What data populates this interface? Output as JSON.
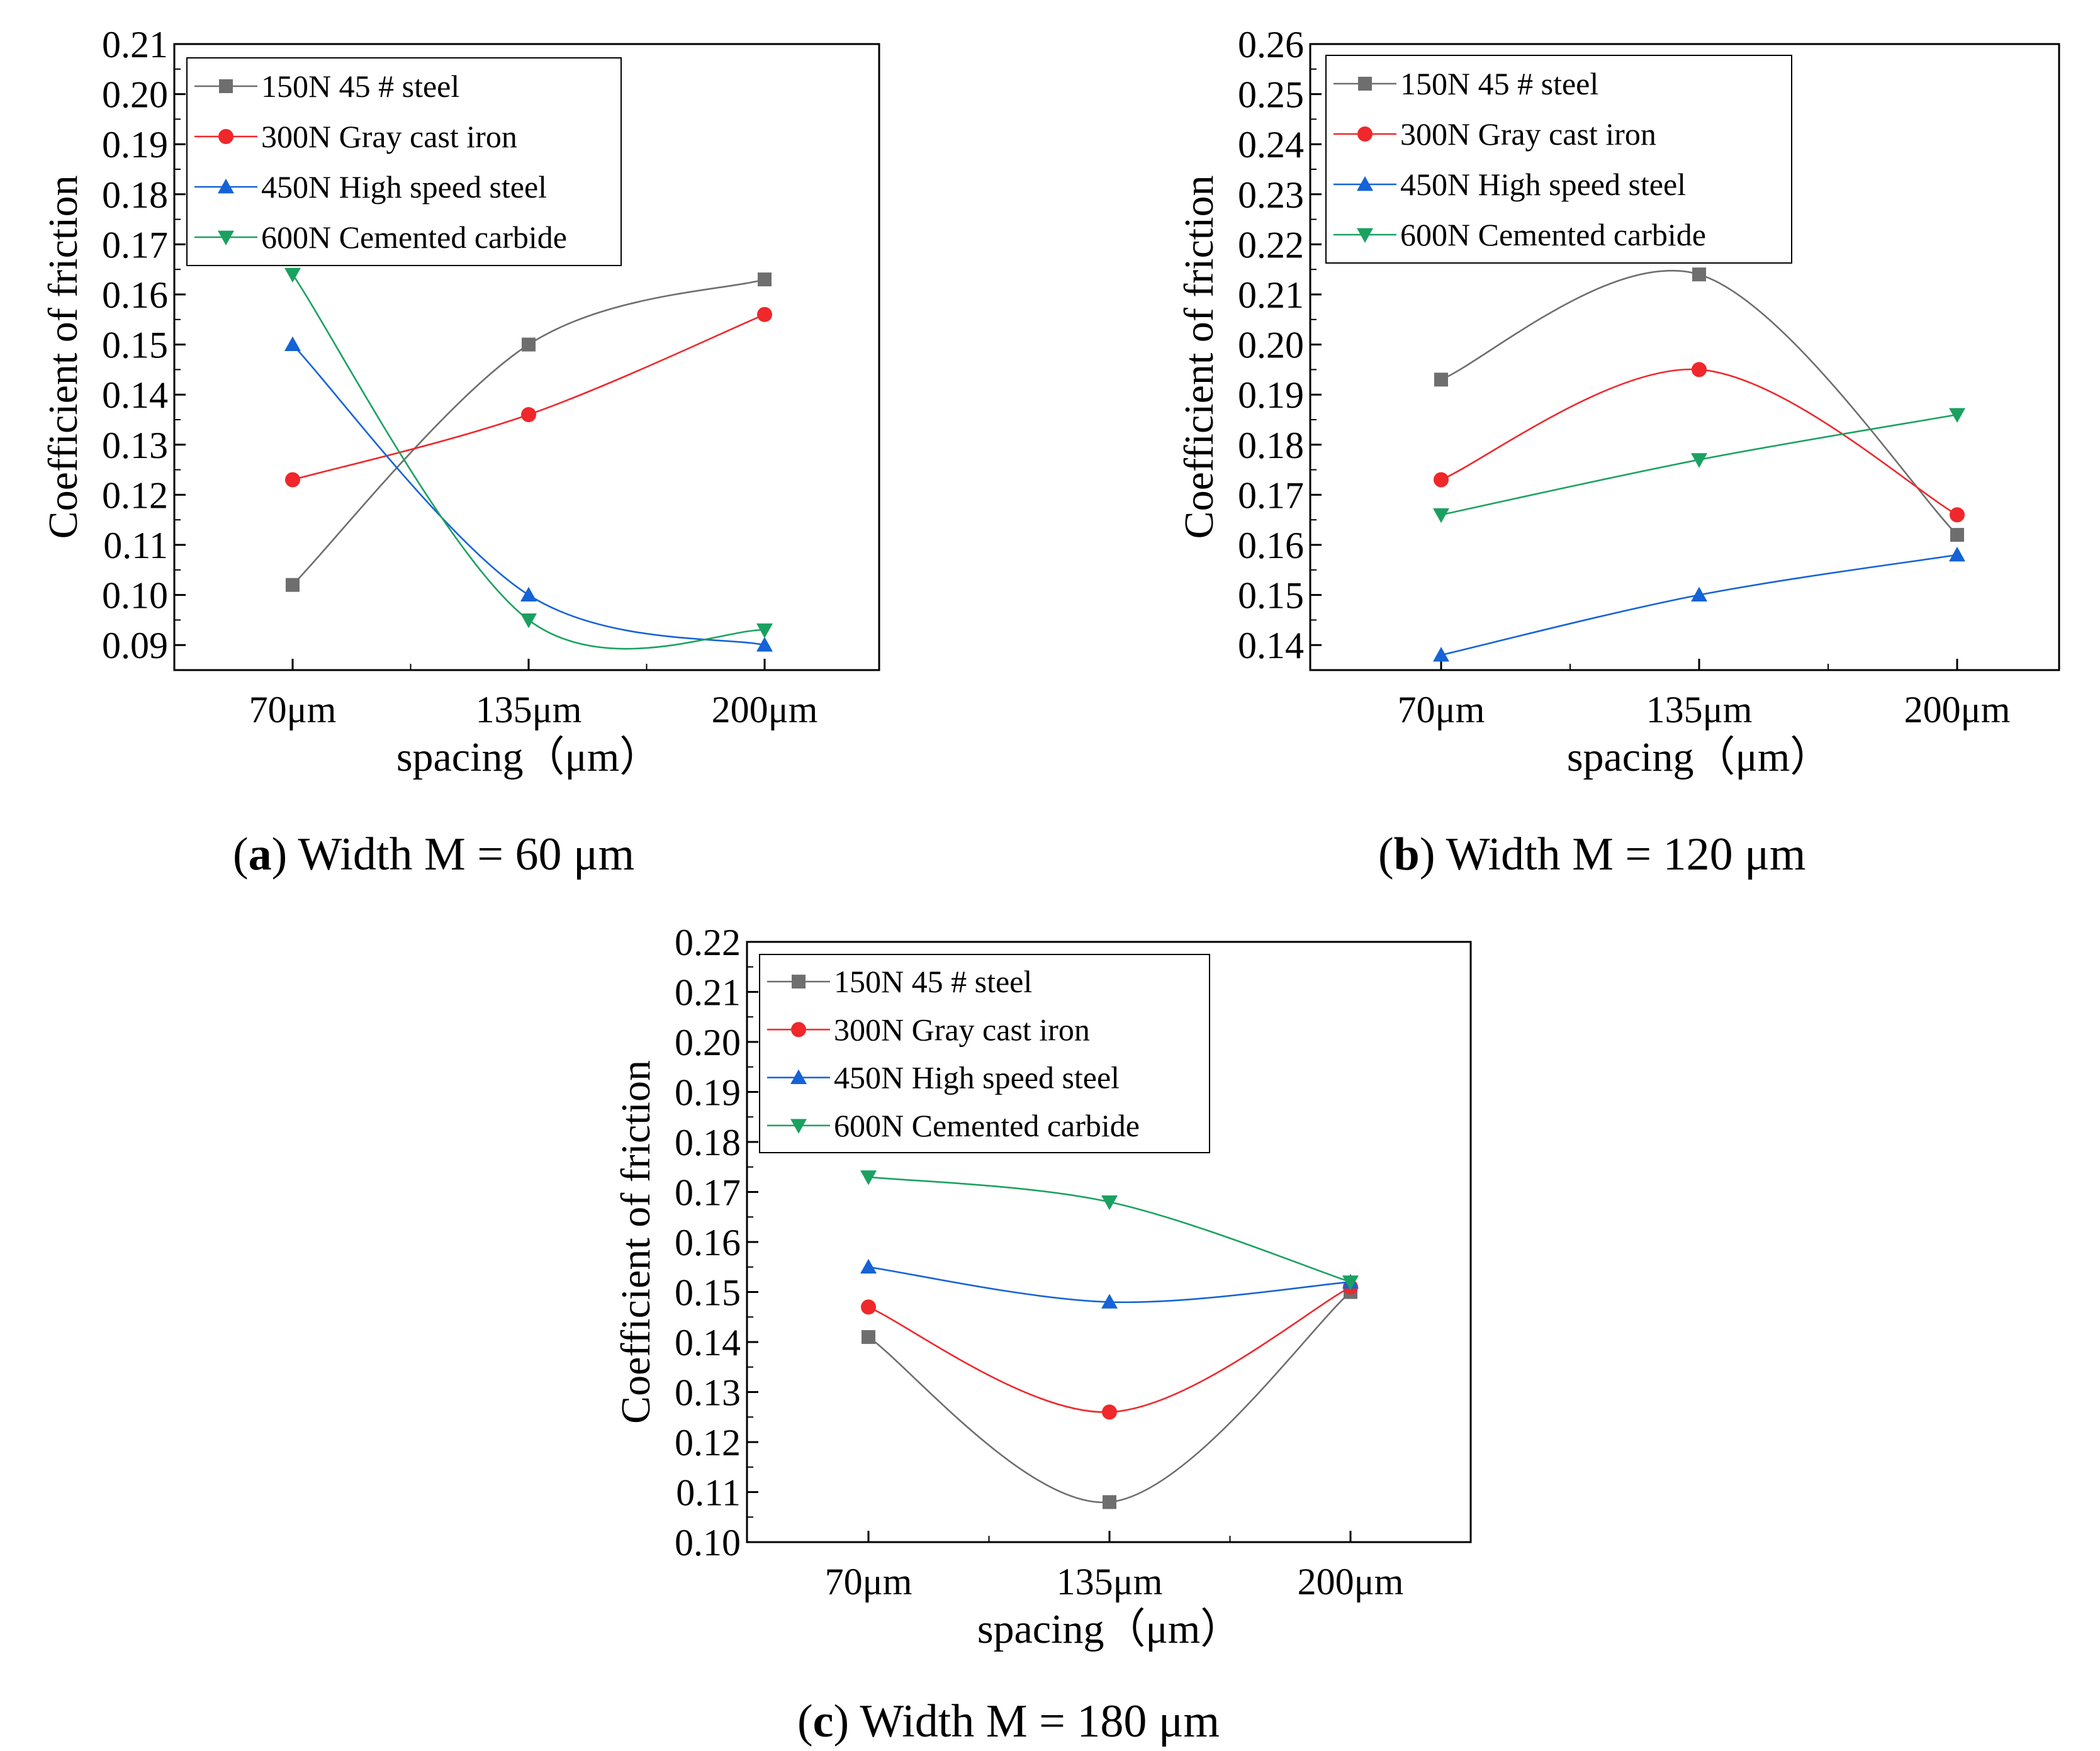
{
  "figure": {
    "panels": [
      {
        "letter": "a",
        "caption_text": " Width M = 60 μm"
      },
      {
        "letter": "b",
        "caption_text": " Width M = 120 μm"
      },
      {
        "letter": "c",
        "caption_text": " Width M = 180 μm"
      }
    ]
  },
  "chart_data": [
    {
      "type": "line",
      "title": "(a) Width M = 60 μm",
      "xlabel": "spacing（μm）",
      "ylabel": "Coefficient of friction",
      "categories": [
        "70μm",
        "135μm",
        "200μm"
      ],
      "ylim": [
        0.085,
        0.21
      ],
      "yticks": [
        "0.09",
        "0.10",
        "0.11",
        "0.12",
        "0.13",
        "0.14",
        "0.15",
        "0.16",
        "0.17",
        "0.18",
        "0.19",
        "0.20",
        "0.21"
      ],
      "legend_position": "top-left",
      "series": [
        {
          "name": "150N 45 # steel",
          "color": "#6e6e6e",
          "marker": "square",
          "values": [
            0.102,
            0.15,
            0.163
          ]
        },
        {
          "name": "300N Gray cast iron",
          "color": "#f0272b",
          "marker": "circle",
          "values": [
            0.123,
            0.136,
            0.156
          ]
        },
        {
          "name": "450N High speed steel",
          "color": "#1563d6",
          "marker": "triangle-up",
          "values": [
            0.15,
            0.1,
            0.09
          ]
        },
        {
          "name": "600N Cemented carbide",
          "color": "#1aa160",
          "marker": "triangle-down",
          "values": [
            0.164,
            0.095,
            0.093
          ]
        }
      ]
    },
    {
      "type": "line",
      "title": "(b) Width M = 120 μm",
      "xlabel": "spacing（μm）",
      "ylabel": "Coefficient of friction",
      "categories": [
        "70μm",
        "135μm",
        "200μm"
      ],
      "ylim": [
        0.135,
        0.26
      ],
      "yticks": [
        "0.14",
        "0.15",
        "0.16",
        "0.17",
        "0.18",
        "0.19",
        "0.20",
        "0.21",
        "0.22",
        "0.23",
        "0.24",
        "0.25",
        "0.26"
      ],
      "legend_position": "top-left",
      "series": [
        {
          "name": "150N 45 # steel",
          "color": "#6e6e6e",
          "marker": "square",
          "values": [
            0.193,
            0.214,
            0.162
          ]
        },
        {
          "name": "300N Gray cast iron",
          "color": "#f0272b",
          "marker": "circle",
          "values": [
            0.173,
            0.195,
            0.166
          ]
        },
        {
          "name": "450N High speed steel",
          "color": "#1563d6",
          "marker": "triangle-up",
          "values": [
            0.138,
            0.15,
            0.158
          ]
        },
        {
          "name": "600N Cemented carbide",
          "color": "#1aa160",
          "marker": "triangle-down",
          "values": [
            0.166,
            0.177,
            0.186
          ]
        }
      ]
    },
    {
      "type": "line",
      "title": "(c) Width M = 180 μm",
      "xlabel": "spacing（μm）",
      "ylabel": "Coefficient of friction",
      "categories": [
        "70μm",
        "135μm",
        "200μm"
      ],
      "ylim": [
        0.1,
        0.22
      ],
      "yticks": [
        "0.10",
        "0.11",
        "0.12",
        "0.13",
        "0.14",
        "0.15",
        "0.16",
        "0.17",
        "0.18",
        "0.19",
        "0.20",
        "0.21",
        "0.22"
      ],
      "legend_position": "top-left",
      "series": [
        {
          "name": "150N 45 # steel",
          "color": "#6e6e6e",
          "marker": "square",
          "values": [
            0.141,
            0.108,
            0.15
          ]
        },
        {
          "name": "300N Gray cast iron",
          "color": "#f0272b",
          "marker": "circle",
          "values": [
            0.147,
            0.126,
            0.151
          ]
        },
        {
          "name": "450N High speed steel",
          "color": "#1563d6",
          "marker": "triangle-up",
          "values": [
            0.155,
            0.148,
            0.152
          ]
        },
        {
          "name": "600N Cemented carbide",
          "color": "#1aa160",
          "marker": "triangle-down",
          "values": [
            0.173,
            0.168,
            0.152
          ]
        }
      ]
    }
  ]
}
